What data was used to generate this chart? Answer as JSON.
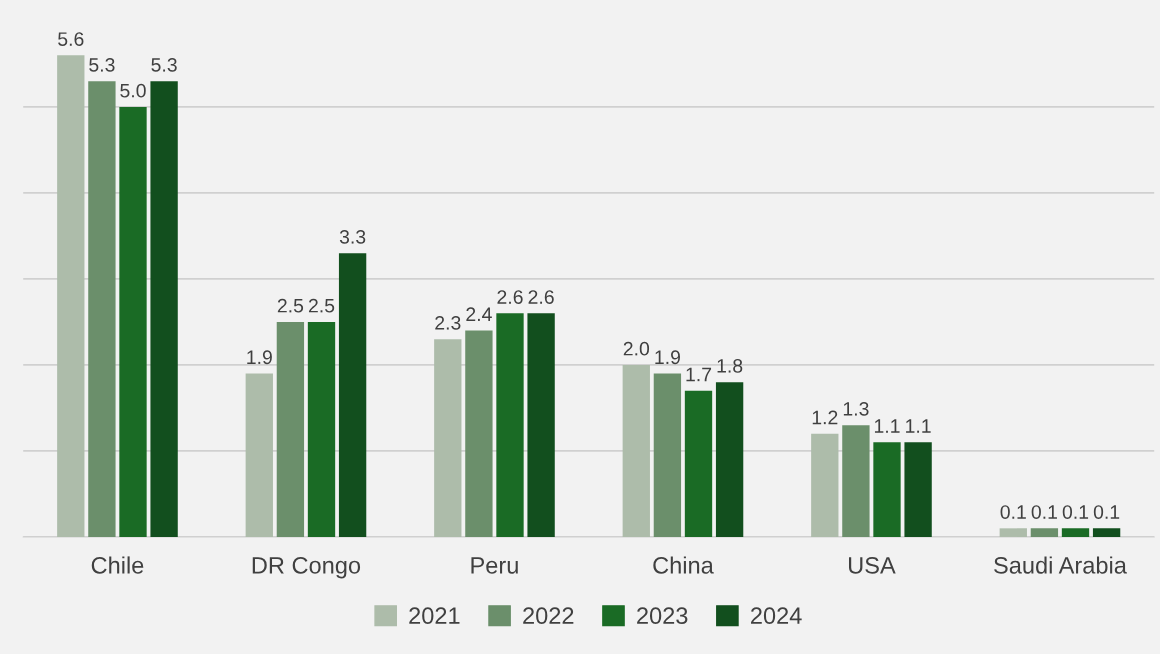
{
  "chart_data": {
    "type": "bar",
    "categories": [
      "Chile",
      "DR Congo",
      "Peru",
      "China",
      "USA",
      "Saudi Arabia"
    ],
    "series": [
      {
        "name": "2021",
        "color": "#adbcaa",
        "values": [
          5.6,
          1.9,
          2.3,
          2.0,
          1.2,
          0.1
        ],
        "value_labels": [
          "5.6",
          "1.9",
          "2.3",
          "2.0",
          "1.2",
          "0.1"
        ]
      },
      {
        "name": "2022",
        "color": "#6b8f6b",
        "values": [
          5.3,
          2.5,
          2.4,
          1.9,
          1.3,
          0.1
        ],
        "value_labels": [
          "5.3",
          "2.5",
          "2.4",
          "1.9",
          "1.3",
          "0.1"
        ]
      },
      {
        "name": "2023",
        "color": "#1a6b25",
        "values": [
          5.0,
          2.5,
          2.6,
          1.7,
          1.1,
          0.1
        ],
        "value_labels": [
          "5.0",
          "2.5",
          "2.6",
          "1.7",
          "1.1",
          "0.1"
        ]
      },
      {
        "name": "2024",
        "color": "#124f1e",
        "values": [
          5.3,
          3.3,
          2.6,
          1.8,
          1.1,
          0.1
        ],
        "value_labels": [
          "5.3",
          "3.3",
          "2.6",
          "1.8",
          "1.1",
          "0.1"
        ]
      }
    ],
    "yticks": [
      {
        "value": 0,
        "label": null
      },
      {
        "value": 1,
        "label": null
      },
      {
        "value": 2,
        "label": null
      },
      {
        "value": 3,
        "label": null
      },
      {
        "value": 4,
        "label": null
      },
      {
        "value": 5,
        "label": null
      }
    ],
    "grid": "y",
    "legend": "bottom",
    "tick_labels": "x"
  }
}
